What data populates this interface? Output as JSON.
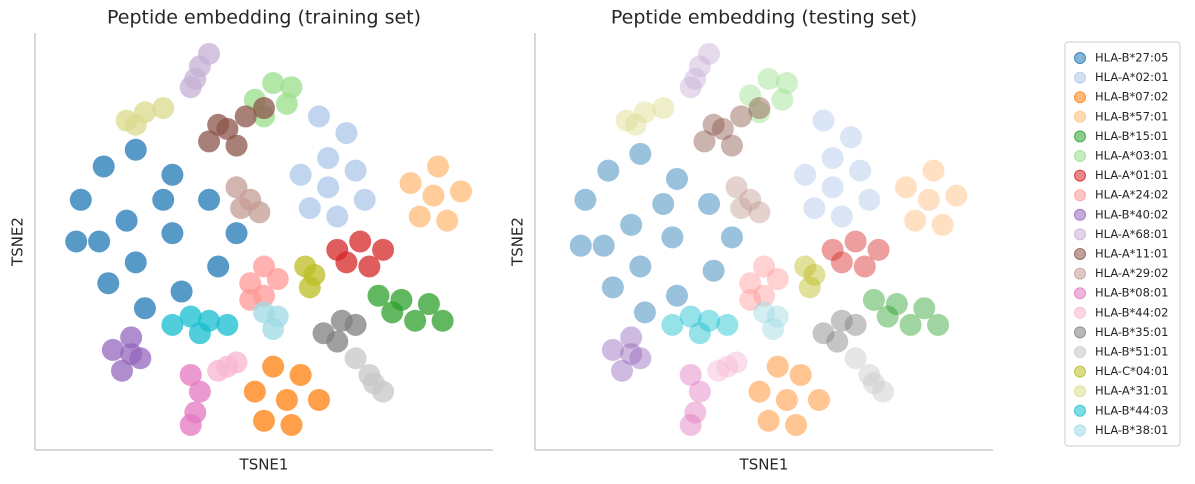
{
  "chart_data": [
    {
      "type": "scatter",
      "title": "Peptide embedding (training set)",
      "xlabel": "TSNE1",
      "ylabel": "TSNE2",
      "xlim": [
        0,
        100
      ],
      "ylim": [
        0,
        100
      ],
      "opacity": 0.75,
      "series": [
        {
          "color": "#1f77b4",
          "x": [
            10,
            15,
            22,
            30,
            38,
            44,
            40,
            32,
            24,
            16,
            9,
            20,
            30,
            22,
            14,
            28
          ],
          "y": [
            60,
            68,
            72,
            66,
            60,
            52,
            44,
            38,
            34,
            40,
            50,
            55,
            52,
            45,
            50,
            60
          ]
        },
        {
          "color": "#aec7e8",
          "x": [
            58,
            64,
            70,
            72,
            66,
            60,
            64,
            62,
            68
          ],
          "y": [
            66,
            70,
            67,
            60,
            56,
            58,
            63,
            80,
            76
          ]
        },
        {
          "color": "#ff7f0e",
          "x": [
            48,
            52,
            58,
            62,
            56,
            50,
            55
          ],
          "y": [
            14,
            20,
            18,
            12,
            6,
            7,
            12
          ]
        },
        {
          "color": "#ffbb78",
          "x": [
            82,
            88,
            93,
            90,
            84,
            87
          ],
          "y": [
            64,
            68,
            62,
            55,
            56,
            61
          ]
        },
        {
          "color": "#2ca02c",
          "x": [
            75,
            80,
            86,
            89,
            83,
            78
          ],
          "y": [
            37,
            36,
            35,
            31,
            31,
            33
          ]
        },
        {
          "color": "#98df8a",
          "x": [
            48,
            52,
            56,
            50,
            55
          ],
          "y": [
            84,
            88,
            87,
            80,
            83
          ]
        },
        {
          "color": "#d62728",
          "x": [
            66,
            71,
            76,
            73,
            68
          ],
          "y": [
            48,
            50,
            48,
            44,
            45
          ]
        },
        {
          "color": "#ff9896",
          "x": [
            47,
            50,
            53,
            50,
            47
          ],
          "y": [
            40,
            44,
            41,
            37,
            36
          ]
        },
        {
          "color": "#9467bd",
          "x": [
            17,
            21,
            23,
            19,
            21
          ],
          "y": [
            24,
            27,
            22,
            19,
            23
          ]
        },
        {
          "color": "#c5b0d5",
          "x": [
            34,
            36,
            38,
            35
          ],
          "y": [
            87,
            92,
            95,
            89
          ]
        },
        {
          "color": "#8c564b",
          "x": [
            38,
            42,
            46,
            50,
            44,
            40
          ],
          "y": [
            74,
            77,
            80,
            82,
            73,
            78
          ]
        },
        {
          "color": "#c49c94",
          "x": [
            44,
            47,
            49,
            45
          ],
          "y": [
            63,
            60,
            57,
            58
          ]
        },
        {
          "color": "#e377c2",
          "x": [
            34,
            36,
            35,
            34
          ],
          "y": [
            18,
            14,
            9,
            6
          ]
        },
        {
          "color": "#f7b6d2",
          "x": [
            42,
            44,
            40
          ],
          "y": [
            20,
            21,
            19
          ]
        },
        {
          "color": "#7f7f7f",
          "x": [
            63,
            67,
            70,
            66
          ],
          "y": [
            28,
            31,
            30,
            26
          ]
        },
        {
          "color": "#c7c7c7",
          "x": [
            70,
            73,
            76,
            74
          ],
          "y": [
            22,
            18,
            14,
            16
          ]
        },
        {
          "color": "#bcbd22",
          "x": [
            59,
            61,
            60
          ],
          "y": [
            44,
            42,
            39
          ]
        },
        {
          "color": "#dbdb8d",
          "x": [
            20,
            24,
            28,
            22
          ],
          "y": [
            79,
            81,
            82,
            78
          ]
        },
        {
          "color": "#17becf",
          "x": [
            30,
            34,
            38,
            42,
            36
          ],
          "y": [
            30,
            32,
            31,
            30,
            28
          ]
        },
        {
          "color": "#9edae5",
          "x": [
            50,
            53,
            52
          ],
          "y": [
            33,
            32,
            29
          ]
        }
      ]
    },
    {
      "type": "scatter",
      "title": "Peptide embedding (testing set)",
      "xlabel": "TSNE1",
      "ylabel": "TSNE2",
      "xlim": [
        0,
        100
      ],
      "ylim": [
        0,
        100
      ],
      "opacity": 0.45,
      "legend": "right",
      "series": [
        {
          "name": "HLA-B*27:05",
          "color": "#1f77b4",
          "x": [
            11,
            16,
            23,
            31,
            38,
            43,
            39,
            31,
            24,
            17,
            10,
            21,
            30,
            23,
            15,
            28
          ],
          "y": [
            60,
            67,
            71,
            65,
            59,
            51,
            43,
            37,
            33,
            39,
            49,
            54,
            51,
            44,
            49,
            59
          ]
        },
        {
          "name": "HLA-A*02:01",
          "color": "#aec7e8",
          "x": [
            59,
            65,
            71,
            73,
            67,
            61,
            65,
            63,
            69
          ],
          "y": [
            66,
            70,
            67,
            60,
            56,
            58,
            63,
            79,
            75
          ]
        },
        {
          "name": "HLA-B*07:02",
          "color": "#ff7f0e",
          "x": [
            49,
            53,
            58,
            62,
            57,
            51,
            55
          ],
          "y": [
            14,
            20,
            18,
            12,
            6,
            7,
            12
          ]
        },
        {
          "name": "HLA-B*57:01",
          "color": "#ffbb78",
          "x": [
            81,
            87,
            92,
            89,
            83,
            86
          ],
          "y": [
            63,
            67,
            61,
            54,
            55,
            60
          ]
        },
        {
          "name": "HLA-B*15:01",
          "color": "#2ca02c",
          "x": [
            74,
            79,
            85,
            88,
            82,
            77
          ],
          "y": [
            36,
            35,
            34,
            30,
            30,
            32
          ]
        },
        {
          "name": "HLA-A*03:01",
          "color": "#98df8a",
          "x": [
            47,
            51,
            55,
            49,
            54
          ],
          "y": [
            85,
            89,
            88,
            81,
            84
          ]
        },
        {
          "name": "HLA-A*01:01",
          "color": "#d62728",
          "x": [
            65,
            70,
            75,
            72,
            67
          ],
          "y": [
            48,
            50,
            48,
            44,
            45
          ]
        },
        {
          "name": "HLA-A*24:02",
          "color": "#ff9896",
          "x": [
            47,
            50,
            53,
            50,
            47
          ],
          "y": [
            40,
            44,
            41,
            37,
            36
          ]
        },
        {
          "name": "HLA-B*40:02",
          "color": "#9467bd",
          "x": [
            17,
            21,
            23,
            19,
            21
          ],
          "y": [
            24,
            27,
            22,
            19,
            23
          ]
        },
        {
          "name": "HLA-A*68:01",
          "color": "#c5b0d5",
          "x": [
            34,
            36,
            38,
            35
          ],
          "y": [
            87,
            92,
            95,
            89
          ]
        },
        {
          "name": "HLA-A*11:01",
          "color": "#8c564b",
          "x": [
            37,
            41,
            45,
            49,
            43,
            39
          ],
          "y": [
            74,
            77,
            80,
            82,
            73,
            78
          ]
        },
        {
          "name": "HLA-A*29:02",
          "color": "#c49c94",
          "x": [
            44,
            47,
            49,
            45
          ],
          "y": [
            63,
            60,
            57,
            58
          ]
        },
        {
          "name": "HLA-B*08:01",
          "color": "#e377c2",
          "x": [
            34,
            36,
            35,
            34
          ],
          "y": [
            18,
            14,
            9,
            6
          ]
        },
        {
          "name": "HLA-B*44:02",
          "color": "#f7b6d2",
          "x": [
            42,
            44,
            40
          ],
          "y": [
            20,
            21,
            19
          ]
        },
        {
          "name": "HLA-B*35:01",
          "color": "#7f7f7f",
          "x": [
            63,
            67,
            70,
            66
          ],
          "y": [
            28,
            31,
            30,
            26
          ]
        },
        {
          "name": "HLA-B*51:01",
          "color": "#c7c7c7",
          "x": [
            70,
            73,
            76,
            74
          ],
          "y": [
            22,
            18,
            14,
            16
          ]
        },
        {
          "name": "HLA-C*04:01",
          "color": "#bcbd22",
          "x": [
            59,
            61,
            60
          ],
          "y": [
            44,
            42,
            39
          ]
        },
        {
          "name": "HLA-A*31:01",
          "color": "#dbdb8d",
          "x": [
            20,
            24,
            28,
            22
          ],
          "y": [
            79,
            81,
            82,
            78
          ]
        },
        {
          "name": "HLA-B*44:03",
          "color": "#17becf",
          "x": [
            30,
            34,
            38,
            42,
            36
          ],
          "y": [
            30,
            32,
            31,
            30,
            28
          ]
        },
        {
          "name": "HLA-B*38:01",
          "color": "#9edae5",
          "x": [
            50,
            53,
            52
          ],
          "y": [
            33,
            32,
            29
          ]
        }
      ]
    }
  ]
}
